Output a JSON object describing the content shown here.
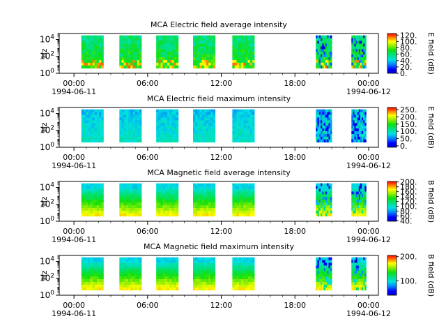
{
  "chart_data": [
    {
      "type": "heatmap",
      "title": "MCA  Electric field average intensity",
      "ylabel": "Hz",
      "yscale": "log",
      "ylim": [
        1,
        50000
      ],
      "y_ticks": [
        {
          "base": "10",
          "exp": "0"
        },
        {
          "base": "10",
          "exp": "2"
        },
        {
          "base": "10",
          "exp": "4"
        }
      ],
      "x_ticks": [
        "00:00",
        "06:00",
        "12:00",
        "18:00",
        "00:00"
      ],
      "x_tick_hours": [
        0,
        6,
        12,
        18,
        24
      ],
      "x_date_labels": [
        "1994-06-11",
        "1994-06-12"
      ],
      "xlim_hours": [
        -1.2,
        24.8
      ],
      "colorbar": {
        "label": "E field (dB)",
        "range": [
          0,
          125
        ],
        "ticks": [
          "0.",
          "20.",
          "40.",
          "60.",
          "80.",
          "100.",
          "120."
        ],
        "tick_values": [
          0,
          20,
          40,
          60,
          80,
          100,
          120
        ]
      },
      "time_blocks_hours": [
        [
          0.6,
          2.4
        ],
        [
          3.7,
          5.5
        ],
        [
          6.7,
          8.5
        ],
        [
          9.7,
          11.5
        ],
        [
          12.9,
          14.7
        ],
        [
          19.7,
          21.0
        ],
        [
          22.6,
          23.8
        ]
      ],
      "style": "avg"
    },
    {
      "type": "heatmap",
      "title": "MCA  Electric field maximum intensity",
      "ylabel": "Hz",
      "yscale": "log",
      "ylim": [
        1,
        50000
      ],
      "y_ticks": [
        {
          "base": "10",
          "exp": "0"
        },
        {
          "base": "10",
          "exp": "2"
        },
        {
          "base": "10",
          "exp": "4"
        }
      ],
      "x_ticks": [
        "00:00",
        "06:00",
        "12:00",
        "18:00",
        "00:00"
      ],
      "x_tick_hours": [
        0,
        6,
        12,
        18,
        24
      ],
      "x_date_labels": [
        "1994-06-11",
        "1994-06-12"
      ],
      "xlim_hours": [
        -1.2,
        24.8
      ],
      "colorbar": {
        "label": "E field (dB)",
        "range": [
          -10,
          265
        ],
        "ticks": [
          "0.",
          "50.",
          "100.",
          "150.",
          "200.",
          "250."
        ],
        "tick_values": [
          0,
          50,
          100,
          150,
          200,
          250
        ]
      },
      "time_blocks_hours": [
        [
          0.6,
          2.4
        ],
        [
          3.7,
          5.5
        ],
        [
          6.7,
          8.5
        ],
        [
          9.7,
          11.5
        ],
        [
          12.9,
          14.7
        ],
        [
          19.7,
          21.0
        ],
        [
          22.6,
          23.8
        ]
      ],
      "style": "max"
    },
    {
      "type": "heatmap",
      "title": "MCA  Magnetic field average intensity",
      "ylabel": "Hz",
      "yscale": "log",
      "ylim": [
        1,
        50000
      ],
      "y_ticks": [
        {
          "base": "10",
          "exp": "0"
        },
        {
          "base": "10",
          "exp": "2"
        },
        {
          "base": "10",
          "exp": "4"
        }
      ],
      "x_ticks": [
        "00:00",
        "06:00",
        "12:00",
        "18:00",
        "00:00"
      ],
      "x_tick_hours": [
        0,
        6,
        12,
        18,
        24
      ],
      "x_date_labels": [
        "1994-06-11",
        "1994-06-12"
      ],
      "xlim_hours": [
        -1.2,
        24.8
      ],
      "colorbar": {
        "label": "B field (dB)",
        "range": [
          38,
          202
        ],
        "ticks": [
          "40.",
          "60.",
          "80.",
          "100.",
          "120.",
          "140.",
          "160.",
          "180.",
          "200."
        ],
        "tick_values": [
          40,
          60,
          80,
          100,
          120,
          140,
          160,
          180,
          200
        ]
      },
      "time_blocks_hours": [
        [
          0.6,
          2.4
        ],
        [
          3.7,
          5.5
        ],
        [
          6.7,
          8.5
        ],
        [
          9.7,
          11.5
        ],
        [
          12.9,
          14.7
        ],
        [
          19.7,
          21.0
        ],
        [
          22.6,
          23.8
        ]
      ],
      "style": "mag"
    },
    {
      "type": "heatmap",
      "title": "MCA  Magnetic field maximum intensity",
      "ylabel": "Hz",
      "yscale": "log",
      "ylim": [
        1,
        50000
      ],
      "y_ticks": [
        {
          "base": "10",
          "exp": "0"
        },
        {
          "base": "10",
          "exp": "2"
        },
        {
          "base": "10",
          "exp": "4"
        }
      ],
      "x_ticks": [
        "00:00",
        "06:00",
        "12:00",
        "18:00",
        "00:00"
      ],
      "x_tick_hours": [
        0,
        6,
        12,
        18,
        24
      ],
      "x_date_labels": [
        "1994-06-11",
        "1994-06-12"
      ],
      "xlim_hours": [
        -1.2,
        24.8
      ],
      "colorbar": {
        "label": "B field (dB)",
        "range": [
          40,
          205
        ],
        "ticks": [
          "100.",
          "200."
        ],
        "tick_values": [
          100,
          200
        ]
      },
      "time_blocks_hours": [
        [
          0.6,
          2.4
        ],
        [
          3.7,
          5.5
        ],
        [
          6.7,
          8.5
        ],
        [
          9.7,
          11.5
        ],
        [
          12.9,
          14.7
        ],
        [
          19.7,
          21.0
        ],
        [
          22.6,
          23.8
        ]
      ],
      "style": "mag"
    }
  ]
}
